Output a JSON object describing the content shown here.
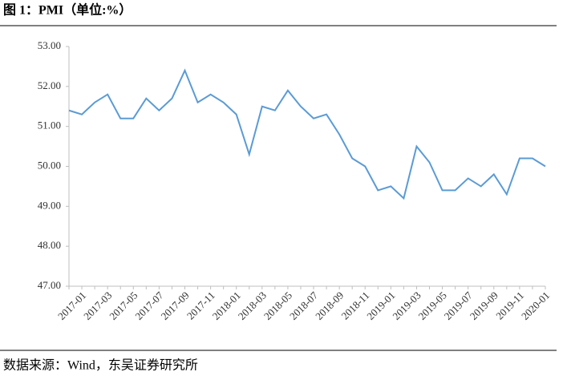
{
  "chart_data": {
    "type": "line",
    "title": "图 1：PMI（单位:%）",
    "source": "数据来源：Wind，东吴证券研究所",
    "categories": [
      null,
      "2017-01",
      null,
      "2017-03",
      null,
      "2017-05",
      null,
      "2017-07",
      null,
      "2017-09",
      null,
      "2017-11",
      null,
      "2018-01",
      null,
      "2018-03",
      null,
      "2018-05",
      null,
      "2018-07",
      null,
      "2018-09",
      null,
      "2018-11",
      null,
      "2019-01",
      null,
      "2019-03",
      null,
      "2019-05",
      null,
      "2019-07",
      null,
      "2019-09",
      null,
      "2019-11",
      null,
      "2020-01"
    ],
    "series": [
      {
        "name": "PMI",
        "color": "#5b9bd5",
        "values": [
          51.4,
          51.3,
          51.6,
          51.8,
          51.2,
          51.2,
          51.7,
          51.4,
          51.7,
          52.4,
          51.6,
          51.8,
          51.6,
          51.3,
          50.3,
          51.5,
          51.4,
          51.9,
          51.5,
          51.2,
          51.3,
          50.8,
          50.2,
          50.0,
          49.4,
          49.5,
          49.2,
          50.5,
          50.1,
          49.4,
          49.4,
          49.7,
          49.5,
          49.8,
          49.3,
          50.2,
          50.2,
          50.0
        ]
      }
    ],
    "ylim": [
      47,
      53
    ],
    "yticks": [
      {
        "value": 47,
        "label": "47.00"
      },
      {
        "value": 48,
        "label": "48.00"
      },
      {
        "value": 49,
        "label": "49.00"
      },
      {
        "value": 50,
        "label": "50.00"
      },
      {
        "value": 51,
        "label": "51.00"
      },
      {
        "value": 52,
        "label": "52.00"
      },
      {
        "value": 53,
        "label": "53.00"
      }
    ],
    "grid": false
  }
}
